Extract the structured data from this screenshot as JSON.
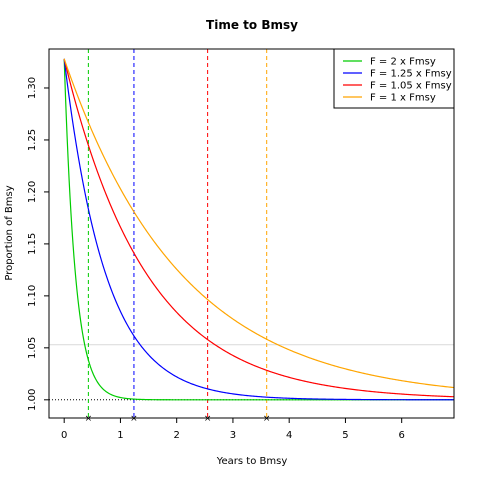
{
  "chart_data": {
    "type": "line",
    "title": "Time to Bmsy",
    "xlabel": "Years to Bmsy",
    "ylabel": "Proportion of Bmsy",
    "xlim": [
      -0.27,
      6.93
    ],
    "ylim": [
      0.9825,
      1.3375
    ],
    "x_ticks": [
      0,
      1,
      2,
      3,
      4,
      5,
      6
    ],
    "y_ticks": [
      1.0,
      1.05,
      1.1,
      1.15,
      1.2,
      1.25,
      1.3
    ],
    "y_tick_labels": [
      "1.00",
      "1.05",
      "1.10",
      "1.15",
      "1.20",
      "1.25",
      "1.30"
    ],
    "legend_position": "top-right",
    "start_value": 1.328,
    "reference_line_y": 1.0,
    "grey_line_y": 1.053,
    "series": [
      {
        "name": "F = 2 x Fmsy",
        "color": "#00cc00",
        "decay_rate": 5.0,
        "bmsy_year": 0.43
      },
      {
        "name": "F = 1.25 x Fmsy",
        "color": "#0000ff",
        "decay_rate": 1.35,
        "bmsy_year": 1.24
      },
      {
        "name": "F = 1.05 x Fmsy",
        "color": "#ff0000",
        "decay_rate": 0.68,
        "bmsy_year": 2.55
      },
      {
        "name": "F = 1 x Fmsy",
        "color": "#ffa500",
        "decay_rate": 0.48,
        "bmsy_year": 3.6
      }
    ]
  }
}
